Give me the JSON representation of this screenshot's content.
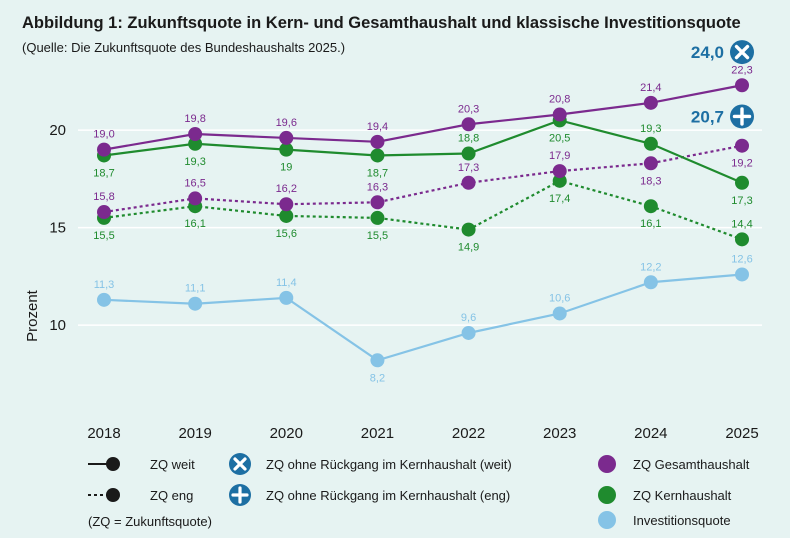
{
  "title": "Abbildung 1: Zukunftsquote in Kern- und Gesamthaushalt und klassische Investitionsquote",
  "subtitle": "(Quelle: Die Zukunftsquote des Bundeshaushalts 2025.)",
  "colors": {
    "background": "#e6f3f2",
    "gridline": "#ffffff",
    "gesamthaushalt": "#7b2a8e",
    "kernhaushalt": "#1f8b2e",
    "investitionsquote": "#85c3e6",
    "badge": "#1d6fa3"
  },
  "chart_data": {
    "type": "line",
    "title": "Abbildung 1: Zukunftsquote in Kern- und Gesamthaushalt und klassische Investitionsquote",
    "subtitle": "(Quelle: Die Zukunftsquote des Bundeshaushalts 2025.)",
    "xlabel": "",
    "ylabel": "Prozent",
    "ylim": [
      7.6,
      23.8
    ],
    "yticks": [
      10,
      15,
      20
    ],
    "grid": true,
    "categories": [
      "2018",
      "2019",
      "2020",
      "2021",
      "2022",
      "2023",
      "2024",
      "2025"
    ],
    "series": [
      {
        "name": "ZQ Gesamthaushalt (weit)",
        "color": "#7b2a8e",
        "style": "solid",
        "values": [
          19.0,
          19.8,
          19.6,
          19.4,
          20.3,
          20.8,
          21.4,
          22.3
        ],
        "labels": [
          "19,0",
          "19,8",
          "19,6",
          "19,4",
          "20,3",
          "20,8",
          "21,4",
          "22,3"
        ],
        "label_pos": "above"
      },
      {
        "name": "ZQ Kernhaushalt (weit)",
        "color": "#1f8b2e",
        "style": "solid",
        "values": [
          18.7,
          19.3,
          19.0,
          18.7,
          18.8,
          20.5,
          19.3,
          17.3
        ],
        "labels": [
          "18,7",
          "19,3",
          "19",
          "18,7",
          "18,8",
          "20,5",
          "19,3",
          "17,3"
        ],
        "label_pos": [
          "below",
          "below",
          "below",
          "below",
          "above",
          "below",
          "above",
          "below"
        ]
      },
      {
        "name": "ZQ Gesamthaushalt (eng)",
        "color": "#7b2a8e",
        "style": "dotted",
        "values": [
          15.8,
          16.5,
          16.2,
          16.3,
          17.3,
          17.9,
          18.3,
          19.2
        ],
        "labels": [
          "15,8",
          "16,5",
          "16,2",
          "16,3",
          "17,3",
          "17,9",
          "18,3",
          "19,2"
        ],
        "label_pos": [
          "above",
          "above",
          "above",
          "above",
          "above",
          "above",
          "below",
          "below"
        ]
      },
      {
        "name": "ZQ Kernhaushalt (eng)",
        "color": "#1f8b2e",
        "style": "dotted",
        "values": [
          15.5,
          16.1,
          15.6,
          15.5,
          14.9,
          17.4,
          16.1,
          14.4
        ],
        "labels": [
          "15,5",
          "16,1",
          "15,6",
          "15,5",
          "14,9",
          "17,4",
          "16,1",
          "14,4"
        ],
        "label_pos": [
          "below",
          "below",
          "below",
          "below",
          "below",
          "below",
          "below",
          "above"
        ]
      },
      {
        "name": "Investitionsquote",
        "color": "#85c3e6",
        "style": "solid",
        "values": [
          11.3,
          11.1,
          11.4,
          8.2,
          9.6,
          10.6,
          12.2,
          12.6
        ],
        "labels": [
          "11,3",
          "11,1",
          "11,4",
          "8,2",
          "9,6",
          "10,6",
          "12,2",
          "12,6"
        ],
        "label_pos": [
          "above",
          "above",
          "above",
          "below",
          "above",
          "above",
          "above",
          "above"
        ]
      }
    ],
    "annotations": [
      {
        "text": "24,0",
        "year": "2025",
        "value": 24.0,
        "icon": "cross-circle-icon",
        "series": "ZQ ohne Rückgang im Kernhaushalt (weit)"
      },
      {
        "text": "20,7",
        "year": "2025",
        "value": 20.7,
        "icon": "plus-circle-icon",
        "series": "ZQ ohne Rückgang im Kernhaushalt (eng)"
      }
    ]
  },
  "legend": {
    "zq_weit": "ZQ weit",
    "zq_eng": "ZQ eng",
    "zq_def": "(ZQ = Zukunftsquote)",
    "ohne_weit": "ZQ ohne Rückgang im Kernhaushalt (weit)",
    "ohne_eng": "ZQ ohne Rückgang im Kernhaushalt (eng)",
    "gesamt": "ZQ Gesamthaushalt",
    "kern": "ZQ Kernhaushalt",
    "invest": "Investitionsquote"
  }
}
